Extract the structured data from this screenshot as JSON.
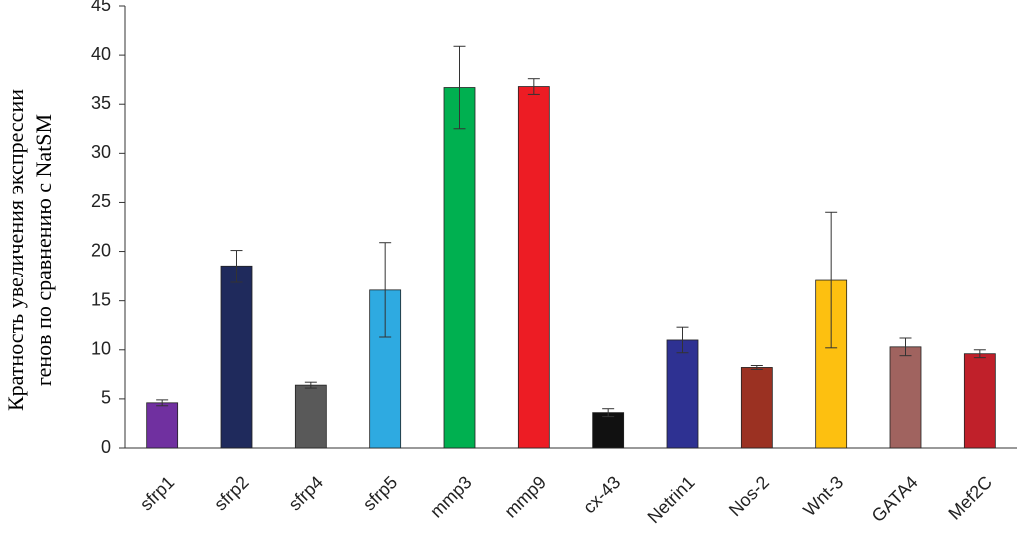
{
  "chart_data": {
    "type": "bar",
    "y_label": [
      "Кратность увеличения экспрессии",
      "генов по сравнению с NatSM"
    ],
    "categories": [
      "sfrp1",
      "sfrp2",
      "sfrp4",
      "sfrp5",
      "mmp3",
      "mmp9",
      "cx-43",
      "Netrin1",
      "Nos-2",
      "Wnt-3",
      "GATA4",
      "Mef2C"
    ],
    "values": [
      4.6,
      18.5,
      6.4,
      16.1,
      36.7,
      36.8,
      3.6,
      11.0,
      8.2,
      17.1,
      10.3,
      9.6
    ],
    "errors": [
      0.3,
      1.6,
      0.3,
      4.8,
      4.2,
      0.8,
      0.4,
      1.3,
      0.2,
      6.9,
      0.9,
      0.4
    ],
    "colors": [
      "#7030a0",
      "#1f2a5c",
      "#595959",
      "#2eaae1",
      "#00b050",
      "#ed1c24",
      "#111111",
      "#2e3192",
      "#9b3122",
      "#fdc010",
      "#a0635f",
      "#c0202a"
    ],
    "ylim": [
      0,
      45
    ],
    "yticks": [
      0,
      5,
      10,
      15,
      20,
      25,
      30,
      35,
      40,
      45
    ],
    "grid": false
  }
}
